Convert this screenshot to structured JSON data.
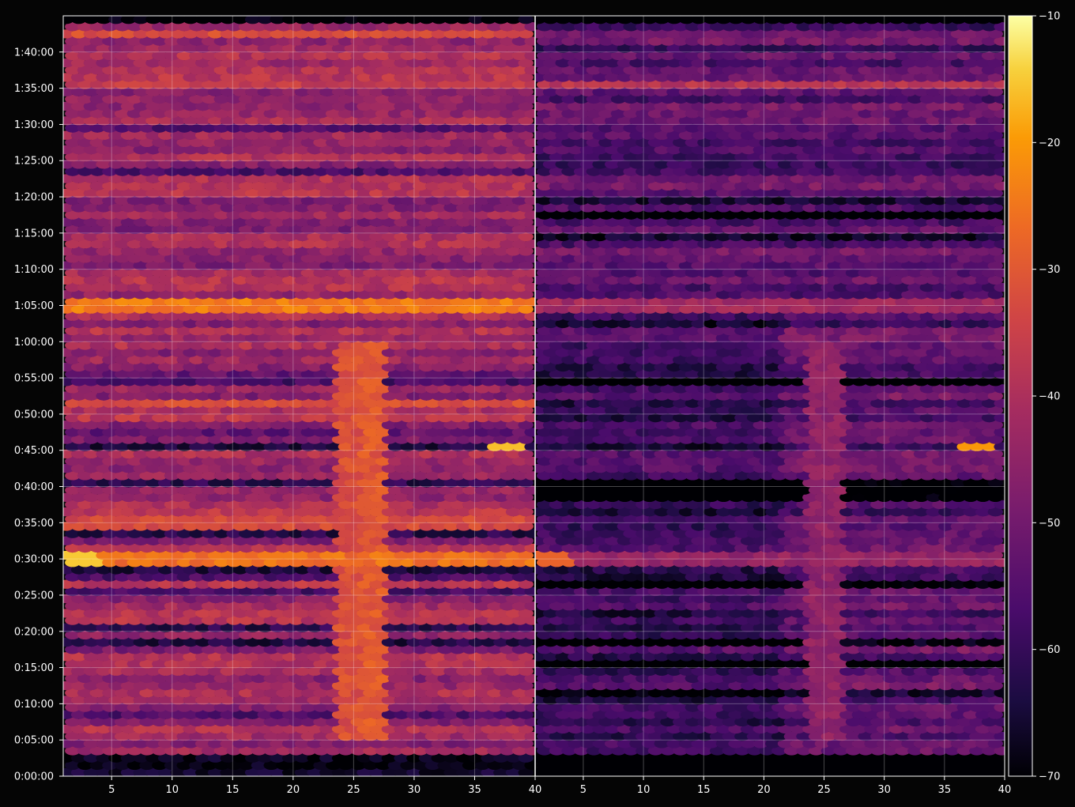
{
  "chart_data": {
    "type": "heatmap",
    "title": "",
    "colormap": "inferno",
    "background": "#050505",
    "grid": true,
    "colorbar": {
      "range": [
        -70,
        -10
      ],
      "ticks": [
        "−10",
        "−20",
        "−30",
        "−40",
        "−50",
        "−60",
        "−70"
      ],
      "tick_values": [
        -10,
        -20,
        -30,
        -40,
        -50,
        -60,
        -70
      ]
    },
    "y_axis": {
      "range_seconds": [
        0,
        6300
      ],
      "ticks": [
        "0:00:00",
        "0:05:00",
        "0:10:00",
        "0:15:00",
        "0:20:00",
        "0:25:00",
        "0:30:00",
        "0:35:00",
        "0:40:00",
        "0:45:00",
        "0:50:00",
        "0:55:00",
        "1:00:00",
        "1:05:00",
        "1:10:00",
        "1:15:00",
        "1:20:00",
        "1:25:00",
        "1:30:00",
        "1:35:00",
        "1:40:00"
      ],
      "tick_seconds": [
        0,
        300,
        600,
        900,
        1200,
        1500,
        1800,
        2100,
        2400,
        2700,
        3000,
        3300,
        3600,
        3900,
        4200,
        4500,
        4800,
        5100,
        5400,
        5700,
        6000
      ]
    },
    "panels": [
      {
        "name": "left",
        "x_range": [
          1,
          40
        ],
        "x_ticks": [
          "5",
          "10",
          "15",
          "20",
          "25",
          "30",
          "35",
          "40"
        ],
        "x_tick_values": [
          5,
          10,
          15,
          20,
          25,
          30,
          35,
          40
        ],
        "base_level": -43,
        "features": [
          {
            "kind": "row",
            "t": 3905,
            "level": -24,
            "note": "bright band"
          },
          {
            "kind": "row",
            "t": 1800,
            "level": -26
          },
          {
            "kind": "row",
            "t": 2100,
            "level": -33
          },
          {
            "kind": "row",
            "t": 3070,
            "level": -32
          },
          {
            "kind": "row",
            "t": 5730,
            "level": -36
          },
          {
            "kind": "row",
            "t": 6140,
            "level": -32
          },
          {
            "kind": "spot",
            "x": 37,
            "t": 2730,
            "level": -16
          },
          {
            "kind": "spot",
            "x": 2,
            "t": 1800,
            "level": -15
          },
          {
            "kind": "column",
            "x": 25,
            "level": -32
          },
          {
            "kind": "column",
            "x": 26.5,
            "level": -30
          }
        ]
      },
      {
        "name": "right",
        "x_range": [
          1,
          40
        ],
        "x_ticks": [
          "5",
          "10",
          "15",
          "20",
          "25",
          "30",
          "35",
          "40"
        ],
        "x_tick_values": [
          5,
          10,
          15,
          20,
          25,
          30,
          35,
          40
        ],
        "base_level": -54,
        "features": [
          {
            "kind": "row",
            "t": 3905,
            "level": -42
          },
          {
            "kind": "row",
            "t": 1800,
            "level": -44
          },
          {
            "kind": "row",
            "t": 5730,
            "level": -38
          },
          {
            "kind": "spot",
            "x": 37,
            "t": 2730,
            "level": -20
          },
          {
            "kind": "spot",
            "x": 2,
            "t": 1800,
            "level": -28
          },
          {
            "kind": "column",
            "x": 25,
            "level": -45
          }
        ]
      }
    ]
  }
}
